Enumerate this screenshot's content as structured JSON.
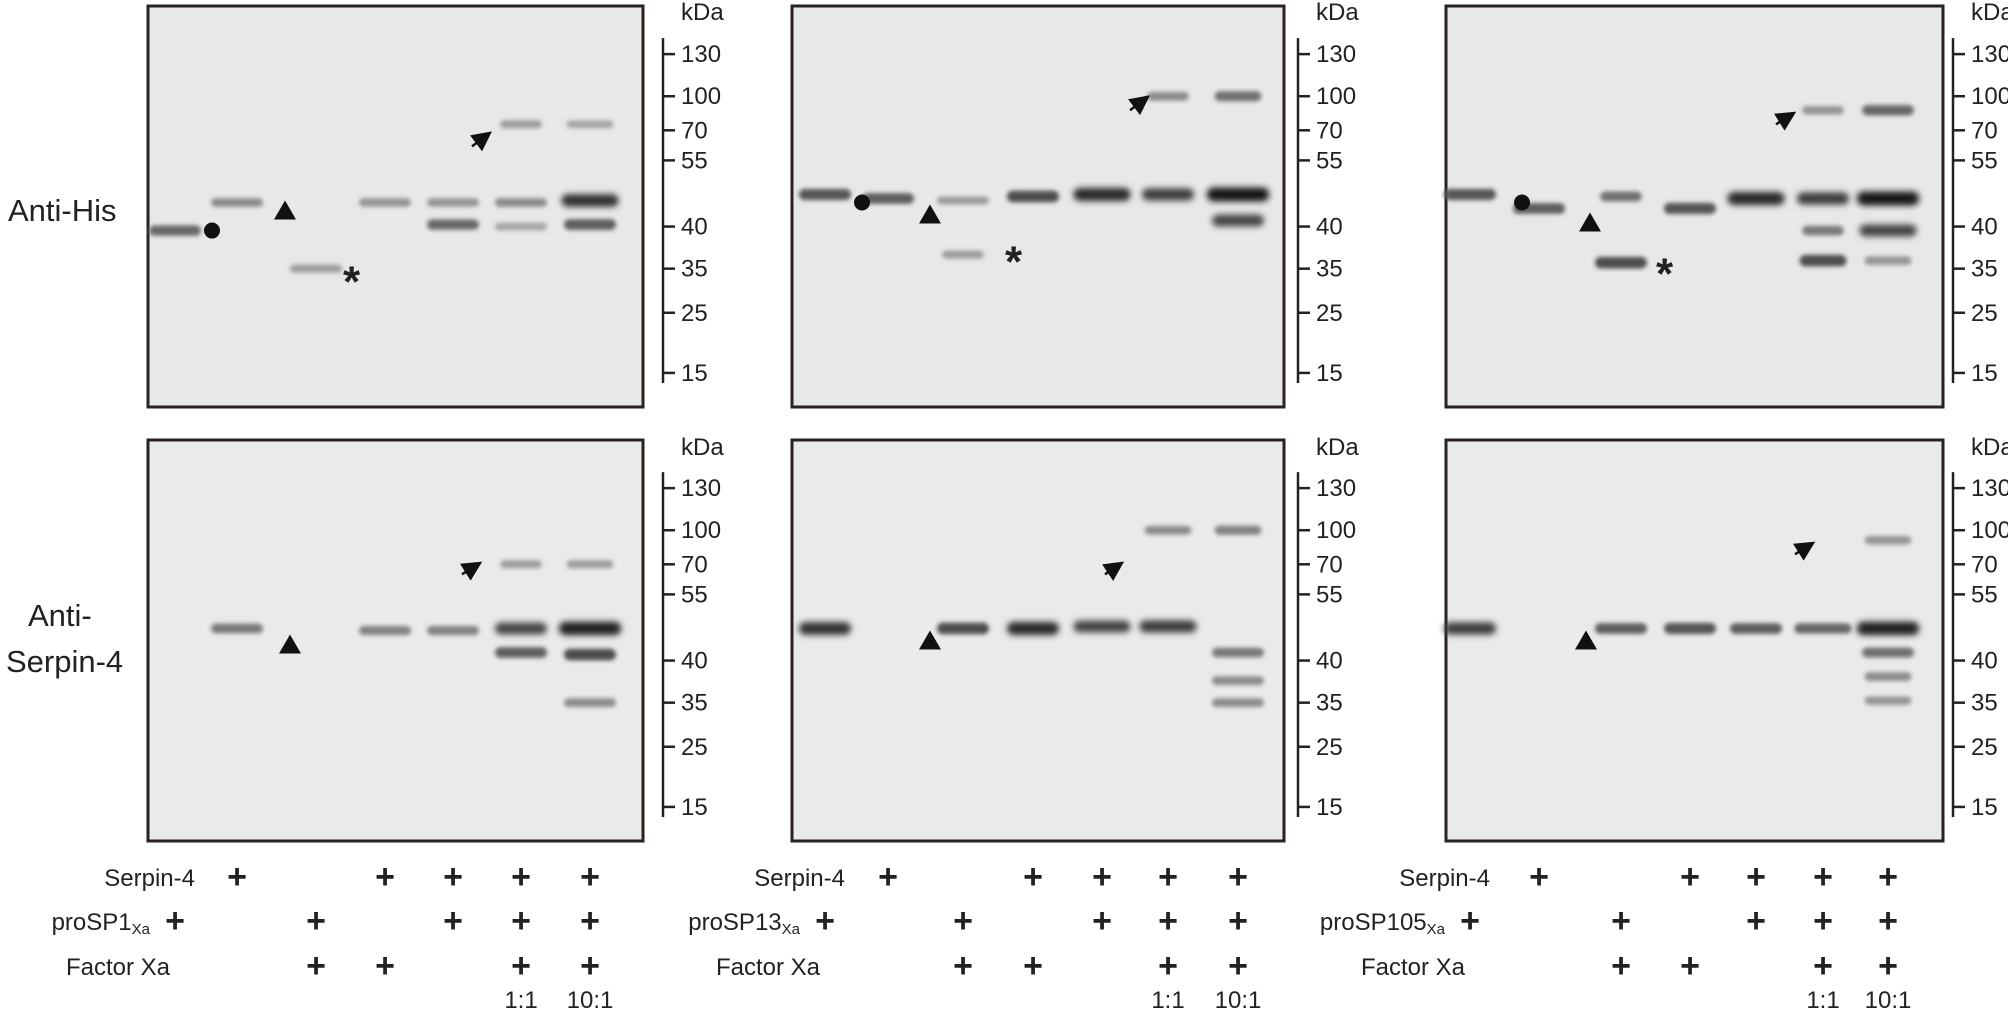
{
  "row_labels": {
    "top": "Anti-His",
    "bottom_line1": "Anti-",
    "bottom_line2": "Serpin-4"
  },
  "marker_unit": "kDa",
  "panels": [
    {
      "protease": "proSP1",
      "subscript": "Xa",
      "top_ladder": [
        "130",
        "100",
        "70",
        "55",
        "40",
        "35",
        "25",
        "15"
      ],
      "bottom_ladder": [
        "130",
        "100",
        "70",
        "55",
        "40",
        "35",
        "25",
        "15"
      ]
    },
    {
      "protease": "proSP13",
      "subscript": "Xa",
      "top_ladder": [
        "130",
        "100",
        "70",
        "55",
        "40",
        "35",
        "25",
        "15"
      ],
      "bottom_ladder": [
        "130",
        "100",
        "70",
        "55",
        "40",
        "35",
        "25",
        "15"
      ]
    },
    {
      "protease": "proSP105",
      "subscript": "Xa",
      "top_ladder": [
        "130",
        "100",
        "70",
        "55",
        "40",
        "35",
        "25",
        "15"
      ],
      "bottom_ladder": [
        "130",
        "100",
        "70",
        "55",
        "40",
        "35",
        "25",
        "15"
      ]
    }
  ],
  "lane_table": {
    "serpin_label": "Serpin-4",
    "factor_label": "Factor Xa",
    "serpin": [
      "",
      "+",
      "",
      "+",
      "+",
      "+",
      "+"
    ],
    "protease": [
      "+",
      "",
      "+",
      "",
      "+",
      "+",
      "+"
    ],
    "factor": [
      "",
      "",
      "+",
      "+",
      "",
      "+",
      "+"
    ],
    "ratios": [
      "",
      "",
      "",
      "",
      "",
      "1:1",
      "10:1"
    ]
  },
  "symbols": {
    "circle": "●",
    "triangle": "▲",
    "asterisk": "*",
    "arrow": "complex-arrow-icon"
  }
}
